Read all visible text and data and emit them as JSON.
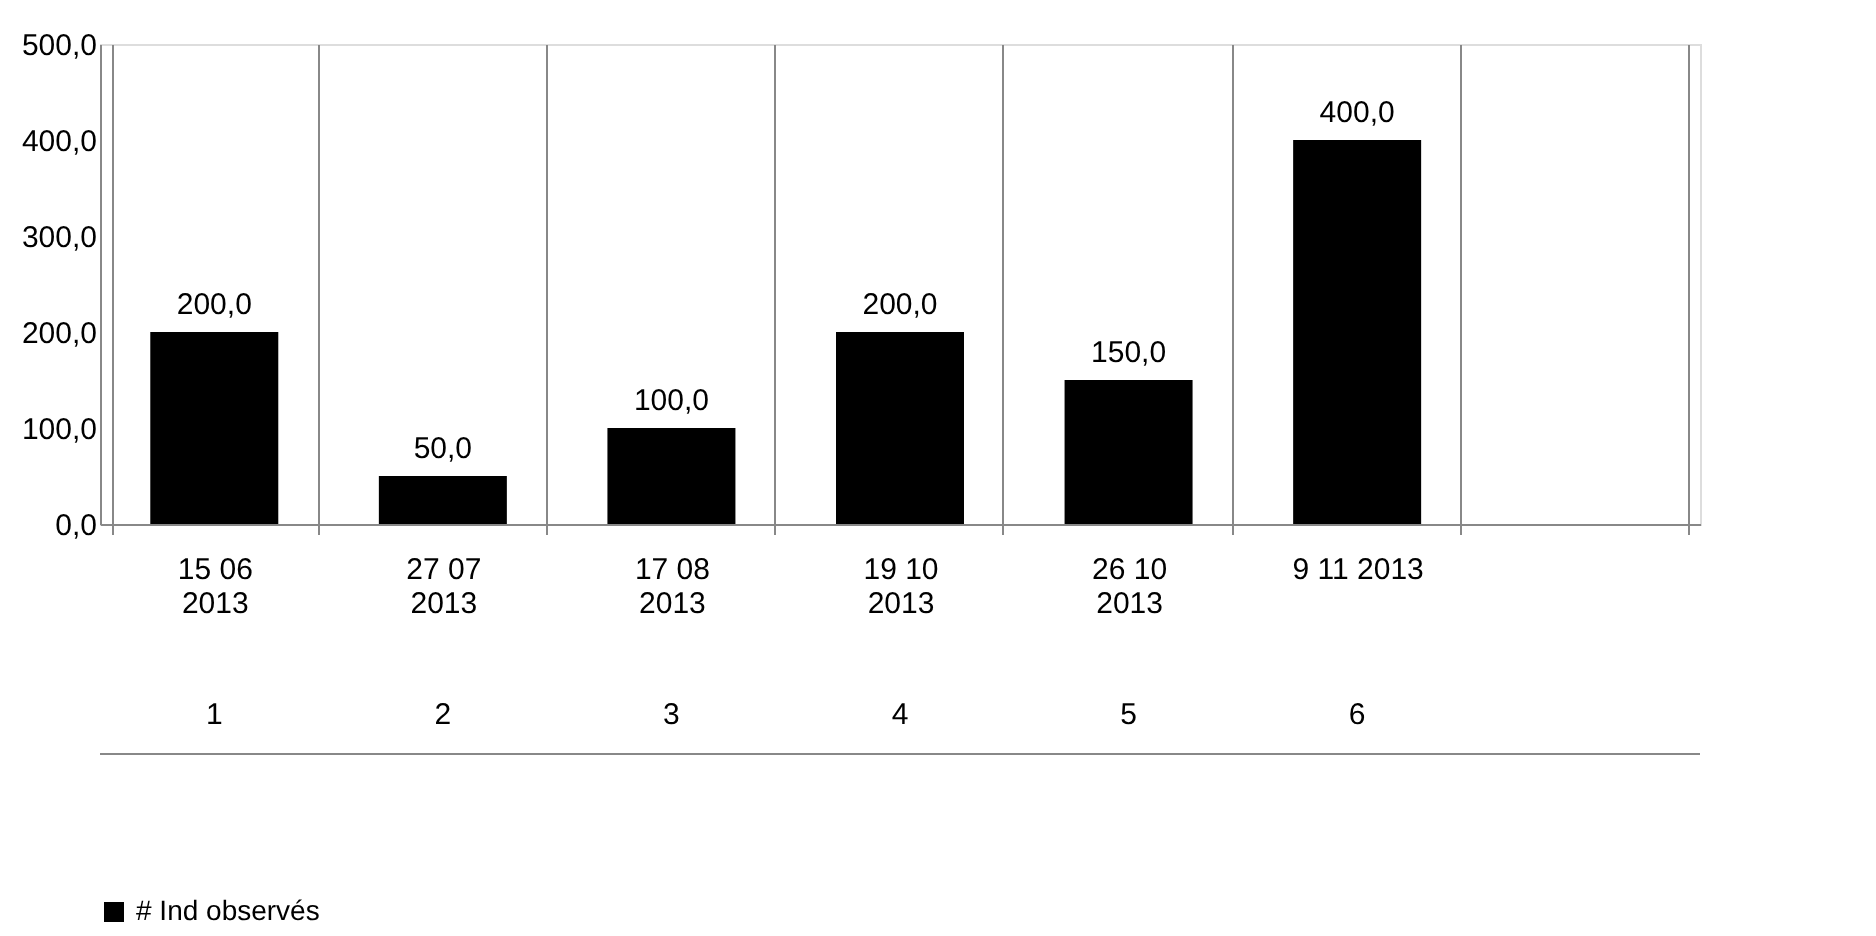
{
  "chart_data": {
    "type": "bar",
    "categories": [
      "15 06 2013",
      "27 07 2013",
      "17 08 2013",
      "19 10 2013",
      "26 10 2013",
      "9 11 2013",
      null
    ],
    "series": [
      {
        "name": "# Ind observés",
        "color": "#000000",
        "values": [
          200.0,
          50.0,
          100.0,
          200.0,
          150.0,
          400.0,
          null
        ],
        "value_labels": [
          "200,0",
          "50,0",
          "100,0",
          "200,0",
          "150,0",
          "400,0",
          null
        ]
      }
    ],
    "annotations": [
      "1",
      "2",
      "3",
      "4",
      "5",
      "6"
    ],
    "ylim": [
      0,
      500
    ],
    "yticks": [
      {
        "value": 0,
        "label": "0,0"
      },
      {
        "value": 100,
        "label": "100,0"
      },
      {
        "value": 200,
        "label": "200,0"
      },
      {
        "value": 300,
        "label": "300,0"
      },
      {
        "value": 400,
        "label": "400,0"
      },
      {
        "value": 500,
        "label": "500,0"
      }
    ],
    "grid": false,
    "legend": "bottom"
  }
}
